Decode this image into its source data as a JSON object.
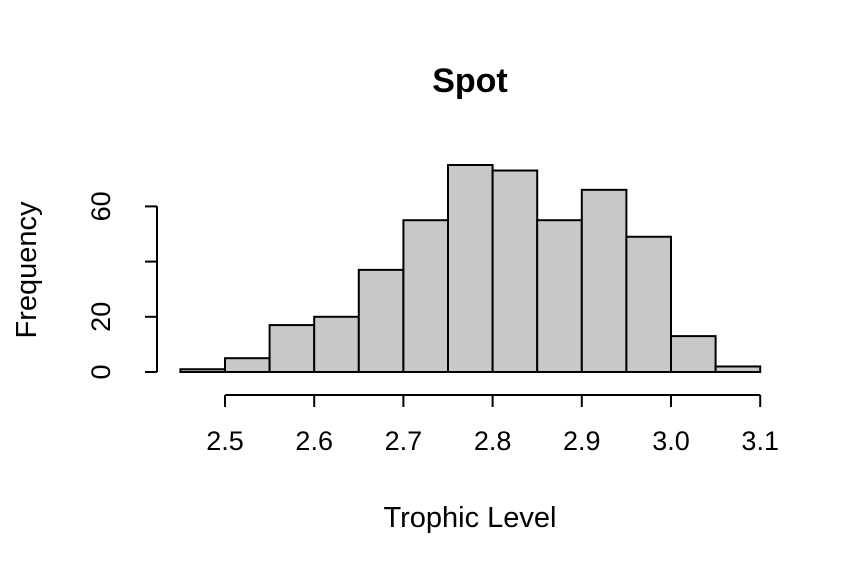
{
  "chart_data": {
    "type": "histogram",
    "title": "Spot",
    "xlabel": "Trophic Level",
    "ylabel": "Frequency",
    "bins": [
      {
        "start": 2.45,
        "end": 2.5,
        "count": 1
      },
      {
        "start": 2.5,
        "end": 2.55,
        "count": 5
      },
      {
        "start": 2.55,
        "end": 2.6,
        "count": 17
      },
      {
        "start": 2.6,
        "end": 2.65,
        "count": 20
      },
      {
        "start": 2.65,
        "end": 2.7,
        "count": 37
      },
      {
        "start": 2.7,
        "end": 2.75,
        "count": 55
      },
      {
        "start": 2.75,
        "end": 2.8,
        "count": 75
      },
      {
        "start": 2.8,
        "end": 2.85,
        "count": 73
      },
      {
        "start": 2.85,
        "end": 2.9,
        "count": 55
      },
      {
        "start": 2.9,
        "end": 2.95,
        "count": 66
      },
      {
        "start": 2.95,
        "end": 3.0,
        "count": 49
      },
      {
        "start": 3.0,
        "end": 3.05,
        "count": 13
      },
      {
        "start": 3.05,
        "end": 3.1,
        "count": 2
      }
    ],
    "xticks": [
      2.5,
      2.6,
      2.7,
      2.8,
      2.9,
      3.0,
      3.1
    ],
    "xtick_labels": [
      "2.5",
      "2.6",
      "2.7",
      "2.8",
      "2.9",
      "3.0",
      "3.1"
    ],
    "yticks": [
      0,
      20,
      40,
      60
    ],
    "ytick_labels": [
      "0",
      "20",
      "",
      "60"
    ],
    "xlim": [
      2.45,
      3.1
    ],
    "ylim": [
      0,
      75
    ],
    "grid": false,
    "colors": {
      "bar_fill": "#c8c8c8",
      "bar_stroke": "#000000"
    }
  }
}
